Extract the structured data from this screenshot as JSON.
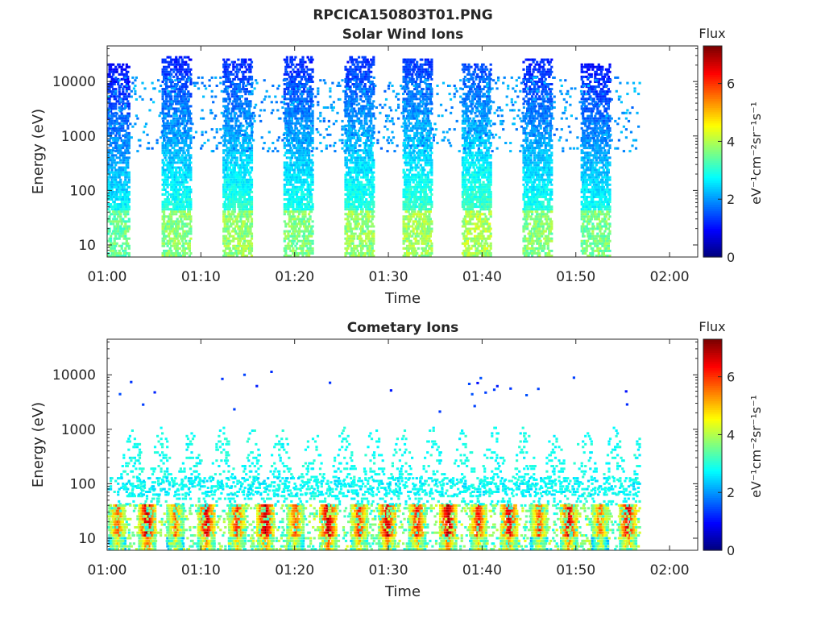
{
  "figure_title": "RPCICA150803T01.PNG",
  "chart_data": [
    {
      "type": "heatmap",
      "title": "Solar Wind Ions",
      "xlabel": "Time",
      "ylabel": "Energy (eV)",
      "x_ticks": [
        "01:00",
        "01:10",
        "01:20",
        "01:30",
        "01:40",
        "01:50",
        "02:00"
      ],
      "x_range": [
        "01:00",
        "02:03"
      ],
      "y_scale": "log",
      "y_ticks": [
        10,
        100,
        1000,
        10000
      ],
      "y_range": [
        6,
        45000
      ],
      "colorbar": {
        "label": "Flux",
        "unit": "eV⁻¹cm⁻²sr⁻¹s⁻¹",
        "ticks": [
          0,
          2,
          4,
          6
        ],
        "range": [
          0,
          7.3
        ],
        "colormap": "jet"
      },
      "bursts": [
        {
          "start_min": 0.0,
          "end_min": 2.3,
          "emax_ev": 20000,
          "peak": 3.3
        },
        {
          "start_min": 5.8,
          "end_min": 8.8,
          "emax_ev": 28000,
          "peak": 3.5
        },
        {
          "start_min": 12.3,
          "end_min": 15.3,
          "emax_ev": 25000,
          "peak": 3.6
        },
        {
          "start_min": 18.8,
          "end_min": 21.8,
          "emax_ev": 28000,
          "peak": 3.5
        },
        {
          "start_min": 25.3,
          "end_min": 28.3,
          "emax_ev": 28000,
          "peak": 3.6
        },
        {
          "start_min": 31.5,
          "end_min": 34.5,
          "emax_ev": 25000,
          "peak": 3.7
        },
        {
          "start_min": 37.8,
          "end_min": 40.8,
          "emax_ev": 20000,
          "peak": 3.8
        },
        {
          "start_min": 44.3,
          "end_min": 47.3,
          "emax_ev": 25000,
          "peak": 3.5
        },
        {
          "start_min": 50.5,
          "end_min": 53.5,
          "emax_ev": 20000,
          "peak": 3.4
        }
      ],
      "background_extent_min": [
        0,
        56.8
      ]
    },
    {
      "type": "heatmap",
      "title": "Cometary Ions",
      "xlabel": "Time",
      "ylabel": "Energy (eV)",
      "x_ticks": [
        "01:00",
        "01:10",
        "01:20",
        "01:30",
        "01:40",
        "01:50",
        "02:00"
      ],
      "x_range": [
        "01:00",
        "02:03"
      ],
      "y_scale": "log",
      "y_ticks": [
        10,
        100,
        1000,
        10000
      ],
      "y_range": [
        6,
        45000
      ],
      "colorbar": {
        "label": "Flux",
        "unit": "eV⁻¹cm⁻²sr⁻¹s⁻¹",
        "ticks": [
          0,
          2,
          4,
          6
        ],
        "range": [
          0,
          7.3
        ],
        "colormap": "jet"
      },
      "bursts": [
        {
          "center_min": 1.0,
          "peak": 6.0
        },
        {
          "center_min": 4.2,
          "peak": 7.0
        },
        {
          "center_min": 7.2,
          "peak": 5.8
        },
        {
          "center_min": 10.5,
          "peak": 6.8
        },
        {
          "center_min": 13.8,
          "peak": 6.3
        },
        {
          "center_min": 16.8,
          "peak": 7.0
        },
        {
          "center_min": 20.0,
          "peak": 6.0
        },
        {
          "center_min": 23.5,
          "peak": 7.0
        },
        {
          "center_min": 26.8,
          "peak": 6.3
        },
        {
          "center_min": 29.8,
          "peak": 6.9
        },
        {
          "center_min": 33.0,
          "peak": 6.5
        },
        {
          "center_min": 36.3,
          "peak": 7.0
        },
        {
          "center_min": 39.5,
          "peak": 6.4
        },
        {
          "center_min": 42.8,
          "peak": 6.8
        },
        {
          "center_min": 46.0,
          "peak": 6.0
        },
        {
          "center_min": 49.2,
          "peak": 6.8
        },
        {
          "center_min": 52.5,
          "peak": 5.8
        },
        {
          "center_min": 55.5,
          "peak": 6.8
        }
      ],
      "background_extent_min": [
        0,
        56.8
      ]
    }
  ]
}
